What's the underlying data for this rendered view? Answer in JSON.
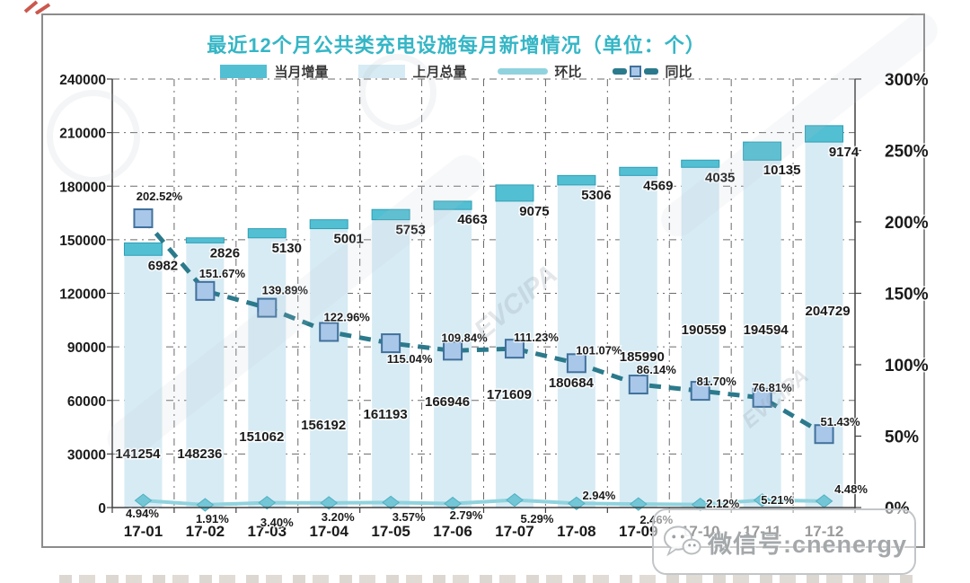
{
  "title": "最近12个月公共类充电设施每月新增情况（单位：个）",
  "legend": {
    "items": [
      {
        "label": "当月增量"
      },
      {
        "label": "上月总量"
      },
      {
        "label": "环比"
      },
      {
        "label": "同比"
      }
    ]
  },
  "watermark": {
    "wechat_label": "微信号:cnenergy",
    "diagonal_text": "EVCIPA"
  },
  "axes": {
    "left_ticks": [
      "0",
      "30000",
      "60000",
      "90000",
      "120000",
      "150000",
      "180000",
      "210000",
      "240000"
    ],
    "right_ticks": [
      "0%",
      "50%",
      "100%",
      "150%",
      "200%",
      "250%",
      "300%"
    ]
  },
  "colors": {
    "title": "#35b6c6",
    "increment_bar": "#52bfd3",
    "increment_bar_edge": "#2f9fb4",
    "total_bar": "#d7ebf4",
    "mom_line": "#90d3de",
    "mom_marker": "#72c6d6",
    "mom_marker_edge": "#4fb0c2",
    "yoy_line": "#2b7a8c",
    "yoy_marker_fill": "#a9c7e9",
    "yoy_marker_edge": "#41719c",
    "grid": "#6b6b6b",
    "axis": "#404040",
    "label": "#1b1b1b"
  },
  "chart_data": {
    "type": "bar",
    "subtype": "stacked bars (prev-month total + monthly increment) with two percent lines on secondary axis",
    "title": "最近12个月公共类充电设施每月新增情况（单位：个）",
    "categories": [
      "17-01",
      "17-02",
      "17-03",
      "17-04",
      "17-05",
      "17-06",
      "17-07",
      "17-08",
      "17-09",
      "17-10",
      "17-11",
      "17-12"
    ],
    "series": [
      {
        "name": "当月增量",
        "type": "bar",
        "stack": "total",
        "axis": "left",
        "values": [
          6982,
          2826,
          5130,
          5001,
          5753,
          4663,
          9075,
          5306,
          4569,
          4035,
          10135,
          9174
        ]
      },
      {
        "name": "上月总量",
        "type": "bar",
        "stack": "total",
        "axis": "left",
        "values": [
          141254,
          148236,
          151062,
          156192,
          161193,
          166946,
          171609,
          180684,
          185990,
          190559,
          194594,
          204729
        ]
      },
      {
        "name": "环比",
        "type": "line",
        "axis": "right",
        "unit": "%",
        "values": [
          4.94,
          1.91,
          3.4,
          3.2,
          3.57,
          2.79,
          5.29,
          2.94,
          2.46,
          2.12,
          5.21,
          4.48
        ]
      },
      {
        "name": "同比",
        "type": "line",
        "axis": "right",
        "unit": "%",
        "values": [
          202.52,
          151.67,
          139.89,
          122.96,
          115.04,
          109.84,
          111.23,
          101.07,
          86.14,
          81.7,
          76.81,
          51.43
        ]
      }
    ],
    "left_axis": {
      "min": 0,
      "max": 240000,
      "step": 30000
    },
    "right_axis": {
      "min": 0,
      "max": 300,
      "step": 50,
      "unit": "%"
    },
    "grid": "dash-dot horizontal and vertical",
    "legend_position": "top"
  }
}
